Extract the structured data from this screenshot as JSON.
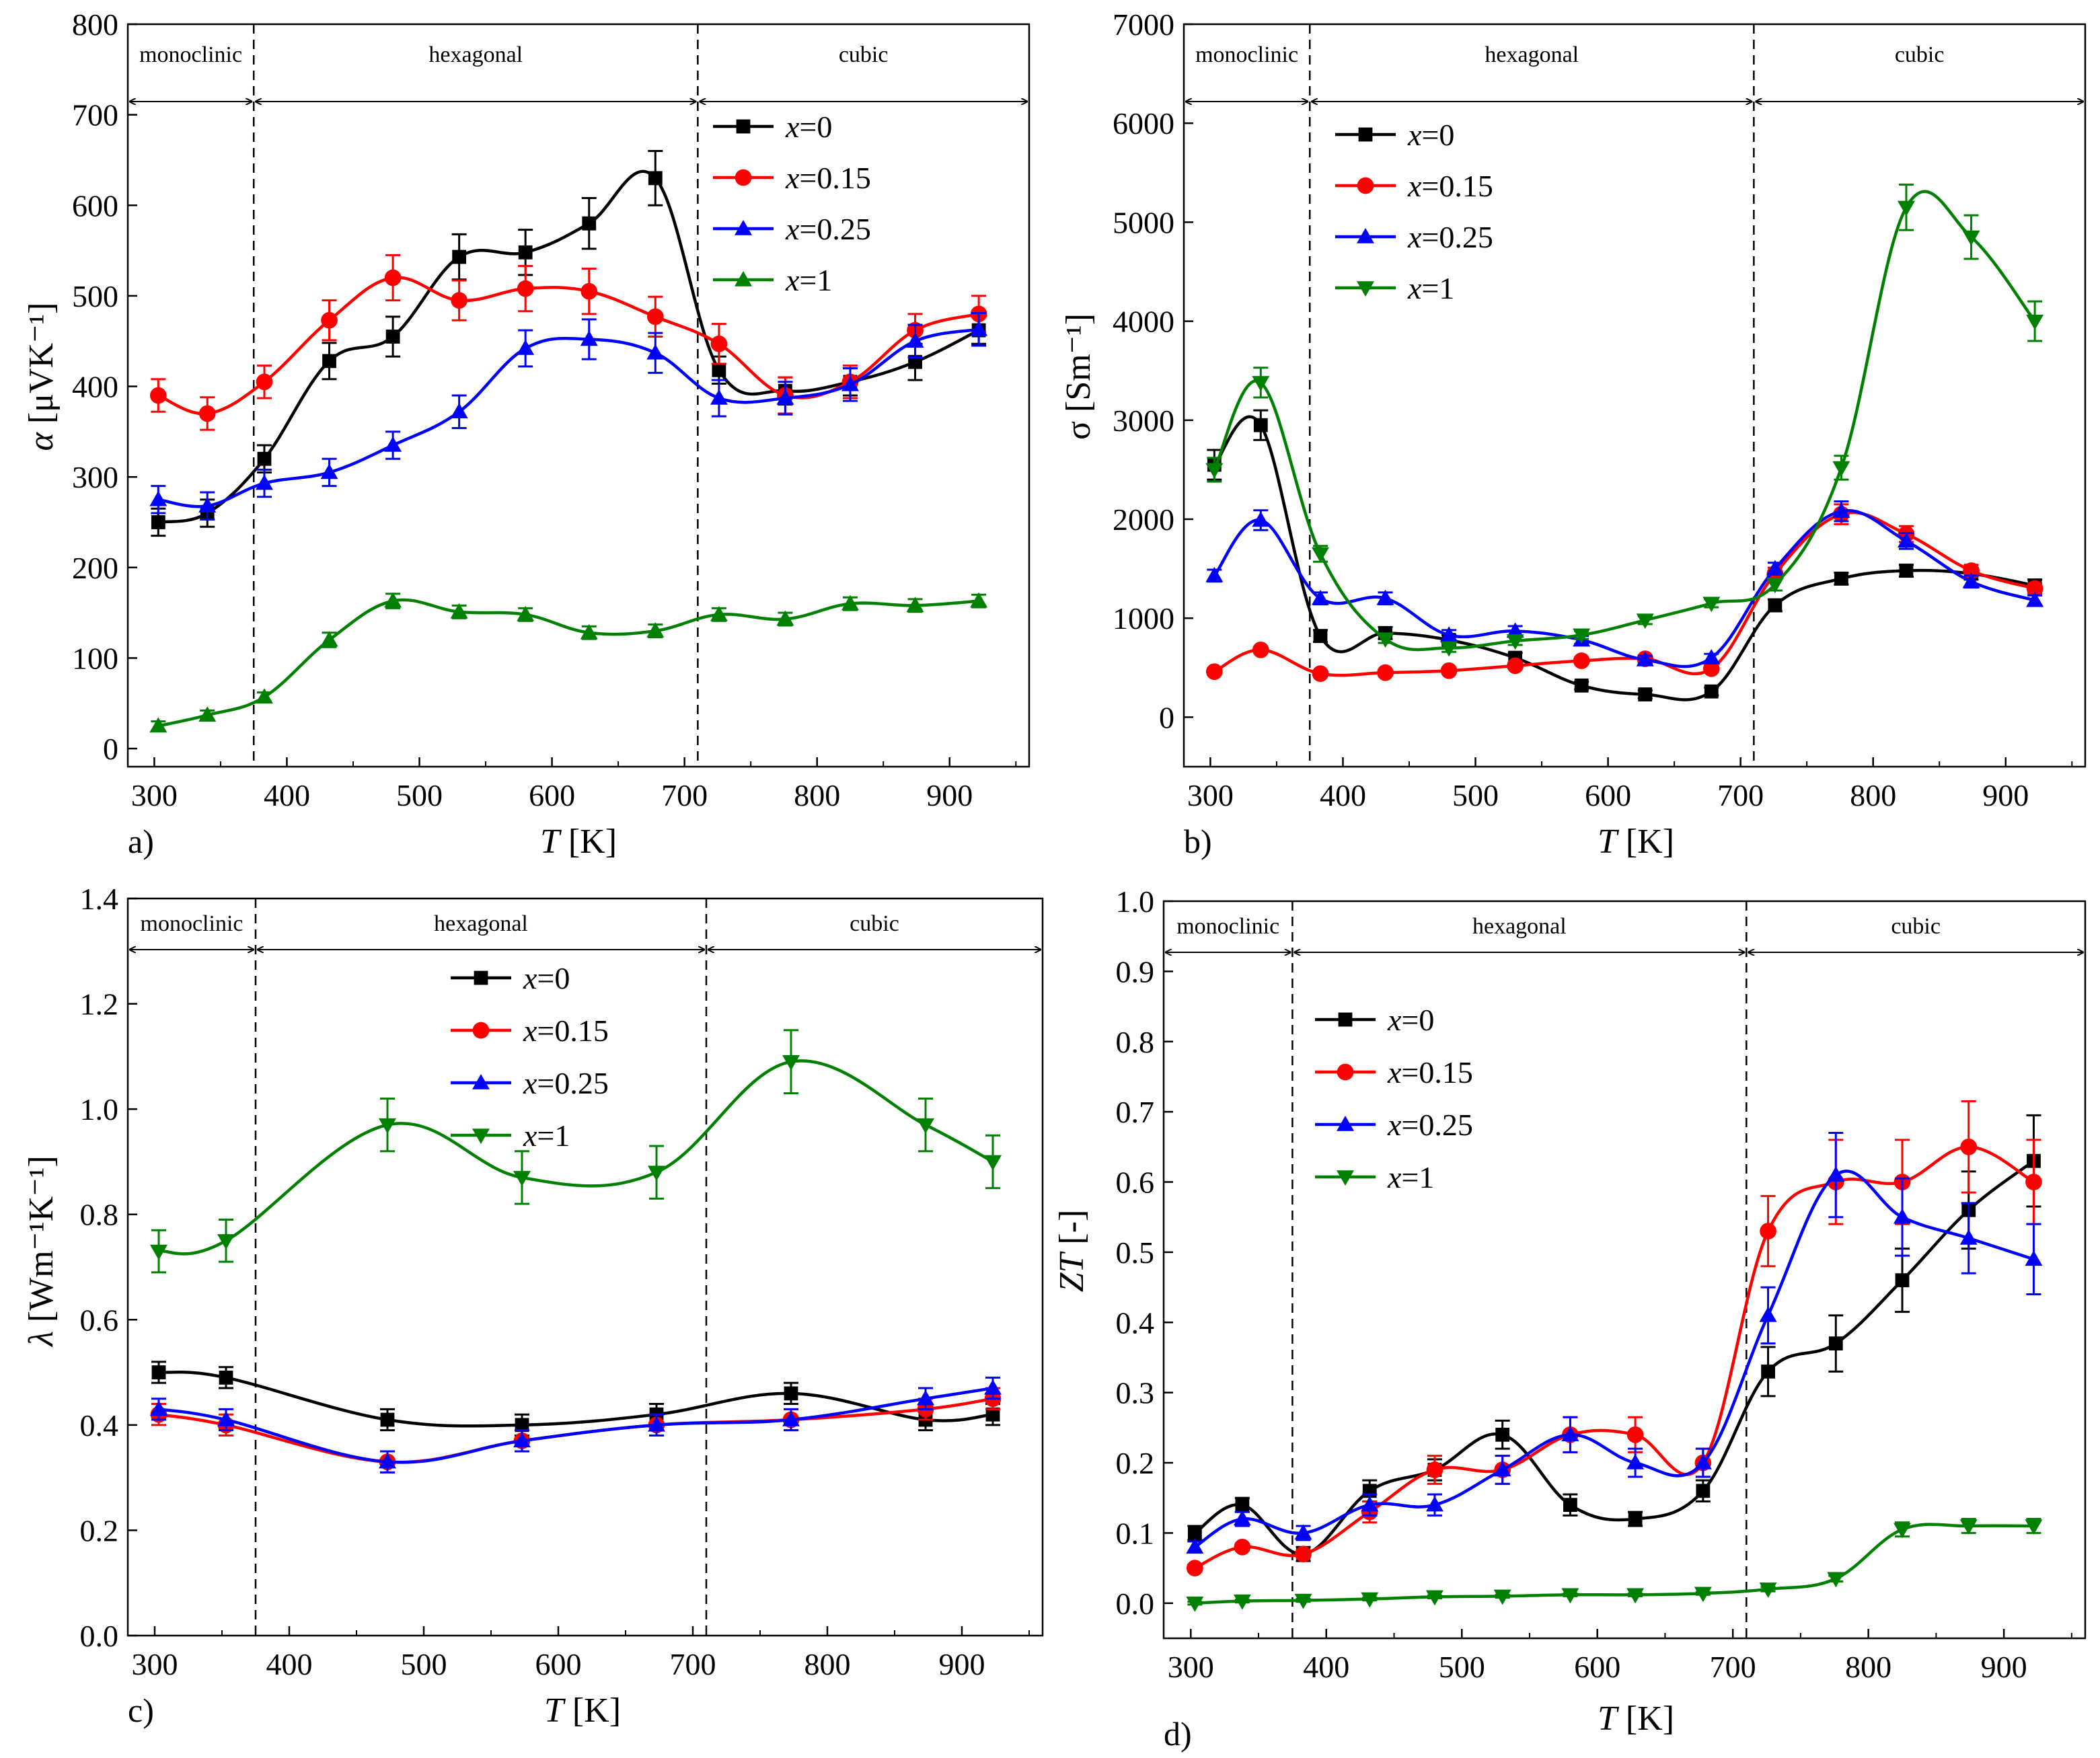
{
  "figure": {
    "phase_labels": [
      "monoclinic",
      "hexagonal",
      "cubic"
    ],
    "phase_boundaries_K": [
      375,
      710
    ],
    "x_axis_label_var": "T",
    "x_axis_label_unit": "[K]",
    "x_ticks": [
      300,
      400,
      500,
      600,
      700,
      800,
      900
    ],
    "colors": {
      "x=0": "#000000",
      "x=0.15": "#ff0000",
      "x=0.25": "#0000ff",
      "x=1": "#008000"
    }
  },
  "chart_data": [
    {
      "type": "line",
      "panel": "a)",
      "ylabel_symbol": "α",
      "ylabel_unit": "[μVK⁻¹]",
      "xlim": [
        280,
        960
      ],
      "ylim": [
        -20,
        800
      ],
      "y_ticks": [
        0,
        100,
        200,
        300,
        400,
        500,
        600,
        700,
        800
      ],
      "legend_position": "top-right",
      "series": [
        {
          "name": "x=0",
          "var": "x",
          "value": "=0",
          "marker": "square",
          "x": [
            303,
            340,
            383,
            432,
            480,
            530,
            580,
            628,
            678,
            726,
            776,
            825,
            874,
            922
          ],
          "y": [
            250,
            260,
            320,
            428,
            455,
            543,
            548,
            580,
            630,
            418,
            395,
            405,
            427,
            462
          ],
          "err": [
            15,
            15,
            15,
            20,
            22,
            25,
            25,
            28,
            30,
            15,
            15,
            15,
            20,
            15
          ]
        },
        {
          "name": "x=0.15",
          "var": "x",
          "value": "=0.15",
          "marker": "circle",
          "x": [
            303,
            340,
            383,
            432,
            480,
            530,
            580,
            628,
            678,
            726,
            776,
            825,
            874,
            922
          ],
          "y": [
            390,
            370,
            405,
            473,
            520,
            495,
            508,
            505,
            477,
            447,
            390,
            405,
            462,
            480
          ],
          "err": [
            18,
            18,
            18,
            22,
            25,
            22,
            25,
            25,
            22,
            22,
            20,
            18,
            18,
            20
          ]
        },
        {
          "name": "x=0.25",
          "var": "x",
          "value": "=0.25",
          "marker": "triangle-up",
          "x": [
            303,
            340,
            383,
            432,
            480,
            530,
            580,
            628,
            678,
            726,
            776,
            825,
            874,
            922
          ],
          "y": [
            275,
            268,
            293,
            305,
            335,
            372,
            442,
            452,
            437,
            387,
            387,
            402,
            450,
            463
          ],
          "err": [
            15,
            15,
            15,
            15,
            15,
            18,
            20,
            22,
            22,
            20,
            18,
            18,
            18,
            18
          ]
        },
        {
          "name": "x=1",
          "var": "x",
          "value": "=1",
          "marker": "triangle-up",
          "x": [
            303,
            340,
            383,
            432,
            480,
            530,
            580,
            628,
            678,
            726,
            776,
            825,
            874,
            922
          ],
          "y": [
            25,
            37,
            57,
            120,
            163,
            151,
            148,
            128,
            130,
            148,
            143,
            160,
            158,
            163
          ],
          "err": [
            5,
            5,
            5,
            8,
            8,
            7,
            7,
            7,
            7,
            7,
            7,
            7,
            7,
            7
          ]
        }
      ]
    },
    {
      "type": "line",
      "panel": "b)",
      "ylabel_symbol": "σ",
      "ylabel_unit": "[Sm⁻¹]",
      "xlim": [
        280,
        960
      ],
      "ylim": [
        -500,
        7000
      ],
      "y_ticks": [
        0,
        1000,
        2000,
        3000,
        4000,
        5000,
        6000,
        7000
      ],
      "legend_position": "top-left",
      "series": [
        {
          "name": "x=0",
          "var": "x",
          "value": "=0",
          "marker": "square",
          "x": [
            303,
            338,
            383,
            432,
            480,
            530,
            580,
            628,
            678,
            726,
            776,
            825,
            874,
            922
          ],
          "y": [
            2550,
            2950,
            820,
            850,
            780,
            600,
            320,
            230,
            260,
            1130,
            1400,
            1480,
            1450,
            1330
          ],
          "err": [
            150,
            150,
            60,
            60,
            50,
            50,
            40,
            40,
            40,
            60,
            60,
            60,
            60,
            60
          ]
        },
        {
          "name": "x=0.15",
          "var": "x",
          "value": "=0.15",
          "marker": "circle",
          "x": [
            303,
            338,
            383,
            432,
            480,
            530,
            580,
            628,
            678,
            726,
            776,
            825,
            874,
            922
          ],
          "y": [
            460,
            680,
            440,
            450,
            470,
            520,
            570,
            590,
            490,
            1450,
            2050,
            1850,
            1480,
            1300
          ],
          "err": [
            30,
            30,
            30,
            30,
            30,
            30,
            30,
            30,
            30,
            60,
            100,
            80,
            60,
            50
          ]
        },
        {
          "name": "x=0.25",
          "var": "x",
          "value": "=0.25",
          "marker": "triangle-up",
          "x": [
            303,
            338,
            383,
            432,
            480,
            530,
            580,
            628,
            678,
            726,
            776,
            825,
            874,
            922
          ],
          "y": [
            1430,
            1990,
            1200,
            1200,
            830,
            870,
            780,
            580,
            600,
            1500,
            2080,
            1780,
            1370,
            1180
          ],
          "err": [
            60,
            100,
            60,
            60,
            50,
            50,
            40,
            40,
            40,
            60,
            100,
            80,
            60,
            50
          ]
        },
        {
          "name": "x=1",
          "var": "x",
          "value": "=1",
          "marker": "triangle-down",
          "x": [
            303,
            338,
            383,
            432,
            480,
            530,
            580,
            628,
            678,
            726,
            776,
            825,
            874,
            922
          ],
          "y": [
            2500,
            3380,
            1650,
            790,
            700,
            770,
            830,
            980,
            1150,
            1340,
            2520,
            5150,
            4850,
            4000
          ],
          "err": [
            120,
            150,
            80,
            40,
            40,
            40,
            40,
            40,
            40,
            60,
            120,
            230,
            220,
            200
          ]
        }
      ]
    },
    {
      "type": "line",
      "panel": "c)",
      "ylabel_symbol": "λ",
      "ylabel_unit": "[Wm⁻¹K⁻¹]",
      "xlim": [
        280,
        960
      ],
      "ylim": [
        0,
        1.4
      ],
      "y_ticks": [
        0.0,
        0.2,
        0.4,
        0.6,
        0.8,
        1.0,
        1.2,
        1.4
      ],
      "legend_position": "top-center",
      "series": [
        {
          "name": "x=0",
          "var": "x",
          "value": "=0",
          "marker": "square",
          "x": [
            303,
            353,
            473,
            573,
            673,
            773,
            873,
            923
          ],
          "y": [
            0.5,
            0.49,
            0.41,
            0.4,
            0.42,
            0.46,
            0.41,
            0.42
          ],
          "err": [
            0.02,
            0.02,
            0.02,
            0.02,
            0.02,
            0.02,
            0.02,
            0.02
          ]
        },
        {
          "name": "x=0.15",
          "var": "x",
          "value": "=0.15",
          "marker": "circle",
          "x": [
            303,
            353,
            473,
            573,
            673,
            773,
            873,
            923
          ],
          "y": [
            0.42,
            0.4,
            0.33,
            0.37,
            0.4,
            0.41,
            0.43,
            0.45
          ],
          "err": [
            0.02,
            0.02,
            0.02,
            0.02,
            0.02,
            0.02,
            0.02,
            0.02
          ]
        },
        {
          "name": "x=0.25",
          "var": "x",
          "value": "=0.25",
          "marker": "triangle-up",
          "x": [
            303,
            353,
            473,
            573,
            673,
            773,
            873,
            923
          ],
          "y": [
            0.43,
            0.41,
            0.33,
            0.37,
            0.4,
            0.41,
            0.45,
            0.47
          ],
          "err": [
            0.02,
            0.02,
            0.02,
            0.02,
            0.02,
            0.02,
            0.02,
            0.02
          ]
        },
        {
          "name": "x=1",
          "var": "x",
          "value": "=1",
          "marker": "triangle-down",
          "x": [
            303,
            353,
            473,
            573,
            673,
            773,
            873,
            923
          ],
          "y": [
            0.73,
            0.75,
            0.97,
            0.87,
            0.88,
            1.09,
            0.97,
            0.9
          ],
          "err": [
            0.04,
            0.04,
            0.05,
            0.05,
            0.05,
            0.06,
            0.05,
            0.05
          ]
        }
      ]
    },
    {
      "type": "line",
      "panel": "d)",
      "ylabel_symbol": "ZT",
      "ylabel_unit": "[-]",
      "xlim": [
        280,
        960
      ],
      "ylim": [
        -0.05,
        1.0
      ],
      "y_ticks": [
        0.0,
        0.1,
        0.2,
        0.3,
        0.4,
        0.5,
        0.6,
        0.7,
        0.8,
        0.9,
        1.0
      ],
      "legend_position": "top-left",
      "series": [
        {
          "name": "x=0",
          "var": "x",
          "value": "=0",
          "marker": "square",
          "x": [
            303,
            338,
            383,
            432,
            480,
            530,
            580,
            628,
            678,
            726,
            776,
            825,
            874,
            922
          ],
          "y": [
            0.1,
            0.14,
            0.07,
            0.16,
            0.19,
            0.24,
            0.14,
            0.12,
            0.16,
            0.33,
            0.37,
            0.46,
            0.56,
            0.63
          ],
          "err": [
            0.01,
            0.01,
            0.01,
            0.015,
            0.015,
            0.02,
            0.015,
            0.01,
            0.015,
            0.035,
            0.04,
            0.045,
            0.055,
            0.065
          ]
        },
        {
          "name": "x=0.15",
          "var": "x",
          "value": "=0.15",
          "marker": "circle",
          "x": [
            303,
            338,
            383,
            432,
            480,
            530,
            580,
            628,
            678,
            726,
            776,
            825,
            874,
            922
          ],
          "y": [
            0.05,
            0.08,
            0.07,
            0.13,
            0.19,
            0.19,
            0.24,
            0.24,
            0.2,
            0.53,
            0.6,
            0.6,
            0.65,
            0.6
          ],
          "err": [
            0.005,
            0.005,
            0.005,
            0.015,
            0.02,
            0.02,
            0.025,
            0.025,
            0.02,
            0.05,
            0.06,
            0.06,
            0.065,
            0.06
          ]
        },
        {
          "name": "x=0.25",
          "var": "x",
          "value": "=0.25",
          "marker": "triangle-up",
          "x": [
            303,
            338,
            383,
            432,
            480,
            530,
            580,
            628,
            678,
            726,
            776,
            825,
            874,
            922
          ],
          "y": [
            0.08,
            0.12,
            0.1,
            0.14,
            0.14,
            0.19,
            0.24,
            0.2,
            0.2,
            0.41,
            0.61,
            0.55,
            0.52,
            0.49
          ],
          "err": [
            0.008,
            0.01,
            0.01,
            0.015,
            0.015,
            0.02,
            0.025,
            0.02,
            0.02,
            0.04,
            0.06,
            0.055,
            0.05,
            0.05
          ]
        },
        {
          "name": "x=1",
          "var": "x",
          "value": "=1",
          "marker": "triangle-down",
          "x": [
            303,
            338,
            383,
            432,
            480,
            530,
            580,
            628,
            678,
            726,
            776,
            825,
            874,
            922
          ],
          "y": [
            0.0,
            0.003,
            0.004,
            0.006,
            0.009,
            0.01,
            0.012,
            0.012,
            0.014,
            0.02,
            0.035,
            0.105,
            0.11,
            0.11
          ],
          "err": [
            0.002,
            0.002,
            0.002,
            0.002,
            0.002,
            0.002,
            0.002,
            0.002,
            0.002,
            0.003,
            0.004,
            0.01,
            0.01,
            0.01
          ]
        }
      ]
    }
  ]
}
